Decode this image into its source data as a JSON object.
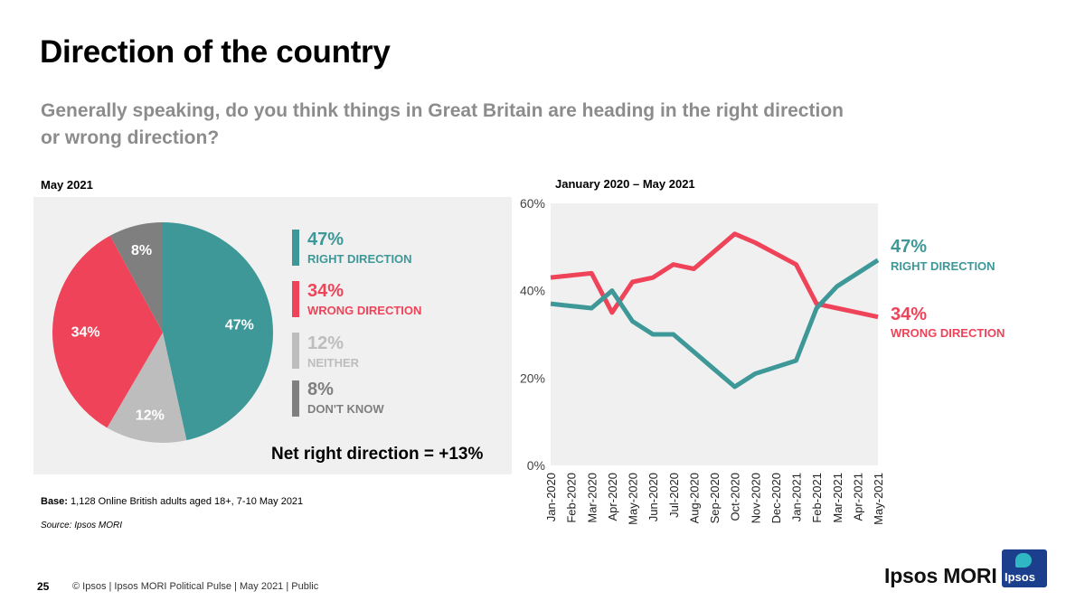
{
  "title": "Direction of the country",
  "question": "Generally speaking, do you think things in Great Britain are heading in the right direction or wrong direction?",
  "colors": {
    "right": "#3e9898",
    "wrong": "#ee4358",
    "neither": "#bdbdbd",
    "dontknow": "#7f7f7f",
    "panel": "#f0f0f0"
  },
  "pie_panel": {
    "heading": "May 2021",
    "net_text": "Net right direction = +13%",
    "legend": [
      {
        "pct": "47%",
        "label": "RIGHT DIRECTION",
        "color": "#3e9898"
      },
      {
        "pct": "34%",
        "label": "WRONG DIRECTION",
        "color": "#ee4358"
      },
      {
        "pct": "12%",
        "label": "NEITHER",
        "color": "#bdbdbd"
      },
      {
        "pct": "8%",
        "label": "DON'T KNOW",
        "color": "#7f7f7f"
      }
    ]
  },
  "line_panel": {
    "heading": "January 2020 – May 2021",
    "end_labels": {
      "right_pct": "47%",
      "right_label": "RIGHT DIRECTION",
      "wrong_pct": "34%",
      "wrong_label": "WRONG DIRECTION"
    }
  },
  "footnotes": {
    "base_bold": "Base:",
    "base_text": "1,128 Online British adults aged 18+, 7-10 May 2021",
    "source": "Source: Ipsos MORI"
  },
  "footer": {
    "page_number": "25",
    "text": "© Ipsos | Ipsos MORI Political Pulse | May 2021 | Public",
    "brand": "Ipsos MORI",
    "logo_text": "Ipsos"
  },
  "chart_data": [
    {
      "type": "pie",
      "title": "May 2021",
      "categories": [
        "Right direction",
        "Wrong direction",
        "Neither",
        "Don't know"
      ],
      "values": [
        47,
        34,
        12,
        8
      ],
      "data_labels": [
        "47%",
        "34%",
        "12%",
        "8%"
      ],
      "colors": [
        "#3e9898",
        "#ee4358",
        "#bdbdbd",
        "#7f7f7f"
      ]
    },
    {
      "type": "line",
      "title": "January 2020 – May 2021",
      "x": [
        "Jan-2020",
        "Feb-2020",
        "Mar-2020",
        "Apr-2020",
        "May-2020",
        "Jun-2020",
        "Jul-2020",
        "Aug-2020",
        "Sep-2020",
        "Oct-2020",
        "Nov-2020",
        "Dec-2020",
        "Jan-2021",
        "Feb-2021",
        "Mar-2021",
        "Apr-2021",
        "May-2021"
      ],
      "series": [
        {
          "name": "Right direction",
          "color": "#3e9898",
          "values": [
            37,
            36.5,
            36,
            40,
            33,
            30,
            30,
            26,
            22,
            18,
            21,
            22.5,
            24,
            36,
            41,
            44,
            47
          ]
        },
        {
          "name": "Wrong direction",
          "color": "#ee4358",
          "values": [
            43,
            43.5,
            44,
            35,
            42,
            43,
            46,
            45,
            49,
            53,
            51,
            48.5,
            46,
            37,
            36,
            35,
            34
          ]
        }
      ],
      "ylim": [
        0,
        60
      ],
      "yticks": [
        0,
        20,
        40,
        60
      ],
      "ytick_labels": [
        "0%",
        "20%",
        "40%",
        "60%"
      ],
      "grid": false,
      "xlabel": "",
      "ylabel": ""
    }
  ]
}
